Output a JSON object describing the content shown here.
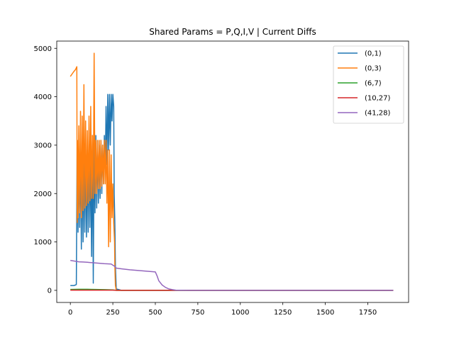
{
  "chart_data": {
    "type": "line",
    "title": "Shared Params = P,Q,I,V | Current Diffs",
    "xlabel": "",
    "ylabel": "",
    "xlim": [
      -80,
      1990
    ],
    "ylim": [
      -250,
      5150
    ],
    "xticks": [
      0,
      250,
      500,
      750,
      1000,
      1250,
      1500,
      1750
    ],
    "xtick_labels": [
      "0",
      "250",
      "500",
      "750",
      "1000",
      "1250",
      "1500",
      "1750"
    ],
    "yticks": [
      0,
      1000,
      2000,
      3000,
      4000,
      5000
    ],
    "ytick_labels": [
      "0",
      "1000",
      "2000",
      "3000",
      "4000",
      "5000"
    ],
    "grid": false,
    "legend_position": "top-right",
    "series": [
      {
        "name": "(0,1)",
        "color": "#1f77b4",
        "x": [
          0,
          10,
          20,
          30,
          35,
          40,
          45,
          50,
          55,
          60,
          65,
          70,
          75,
          80,
          85,
          90,
          95,
          100,
          105,
          110,
          115,
          120,
          125,
          130,
          135,
          140,
          145,
          150,
          155,
          160,
          165,
          170,
          175,
          180,
          185,
          190,
          195,
          200,
          205,
          210,
          215,
          220,
          225,
          230,
          235,
          240,
          245,
          250,
          255,
          258,
          262,
          265,
          270,
          300,
          400,
          500,
          700,
          1000,
          1500,
          1900
        ],
        "y": [
          100,
          100,
          100,
          110,
          120,
          3100,
          1200,
          2800,
          1300,
          3000,
          850,
          3100,
          1000,
          2900,
          1200,
          3000,
          1100,
          2900,
          1200,
          3100,
          1300,
          3000,
          700,
          3200,
          150,
          3100,
          1600,
          3200,
          1700,
          3100,
          1800,
          3000,
          1900,
          3100,
          2000,
          3000,
          2200,
          3200,
          2400,
          3800,
          2600,
          4050,
          2900,
          4050,
          3000,
          4050,
          3500,
          4050,
          3800,
          2000,
          1400,
          500,
          30,
          0,
          0,
          0,
          0,
          0,
          0,
          0
        ]
      },
      {
        "name": "(0,3)",
        "color": "#ff7f0e",
        "x": [
          0,
          10,
          20,
          30,
          38,
          40,
          42,
          45,
          50,
          55,
          60,
          65,
          70,
          75,
          80,
          85,
          90,
          95,
          100,
          105,
          110,
          115,
          120,
          125,
          130,
          135,
          140,
          145,
          150,
          155,
          160,
          165,
          170,
          175,
          180,
          185,
          190,
          195,
          200,
          205,
          210,
          215,
          220,
          225,
          230,
          235,
          240,
          245,
          250,
          255,
          260,
          262,
          265,
          270,
          300,
          500,
          1000,
          1500,
          1900
        ],
        "y": [
          4420,
          4470,
          4520,
          4560,
          4620,
          1400,
          3100,
          1500,
          3400,
          1600,
          3700,
          1500,
          3600,
          1650,
          4250,
          1700,
          3500,
          1750,
          3300,
          1800,
          3600,
          1850,
          3800,
          1900,
          3200,
          1900,
          4900,
          2000,
          3100,
          2000,
          3100,
          2100,
          3100,
          2100,
          3100,
          2150,
          3000,
          2200,
          3100,
          2200,
          3100,
          1800,
          2900,
          900,
          2900,
          1000,
          2800,
          1500,
          2200,
          1400,
          1000,
          500,
          100,
          0,
          0,
          0,
          0,
          0,
          0
        ]
      },
      {
        "name": "(6,7)",
        "color": "#2ca02c",
        "x": [
          0,
          50,
          100,
          150,
          200,
          250,
          270,
          300,
          500,
          750,
          1000,
          1250,
          1500,
          1750,
          1900
        ],
        "y": [
          20,
          22,
          22,
          20,
          15,
          10,
          0,
          0,
          0,
          0,
          0,
          0,
          0,
          0,
          0
        ]
      },
      {
        "name": "(10,27)",
        "color": "#d62728",
        "x": [
          0,
          50,
          100,
          150,
          200,
          250,
          270,
          300,
          500,
          750,
          1000,
          1250,
          1500,
          1750,
          1900
        ],
        "y": [
          5,
          5,
          5,
          5,
          5,
          5,
          0,
          0,
          0,
          0,
          0,
          0,
          0,
          0,
          0
        ]
      },
      {
        "name": "(41,28)",
        "color": "#9467bd",
        "x": [
          0,
          25,
          50,
          75,
          100,
          150,
          200,
          240,
          250,
          260,
          270,
          300,
          350,
          400,
          450,
          500,
          510,
          520,
          540,
          560,
          580,
          600,
          620,
          650,
          700,
          750,
          800,
          1000,
          1250,
          1500,
          1750,
          1900
        ],
        "y": [
          620,
          605,
          590,
          585,
          580,
          565,
          550,
          545,
          520,
          500,
          460,
          445,
          425,
          410,
          395,
          380,
          300,
          200,
          110,
          60,
          30,
          15,
          5,
          2,
          0,
          0,
          0,
          0,
          0,
          0,
          0,
          0
        ]
      }
    ]
  }
}
